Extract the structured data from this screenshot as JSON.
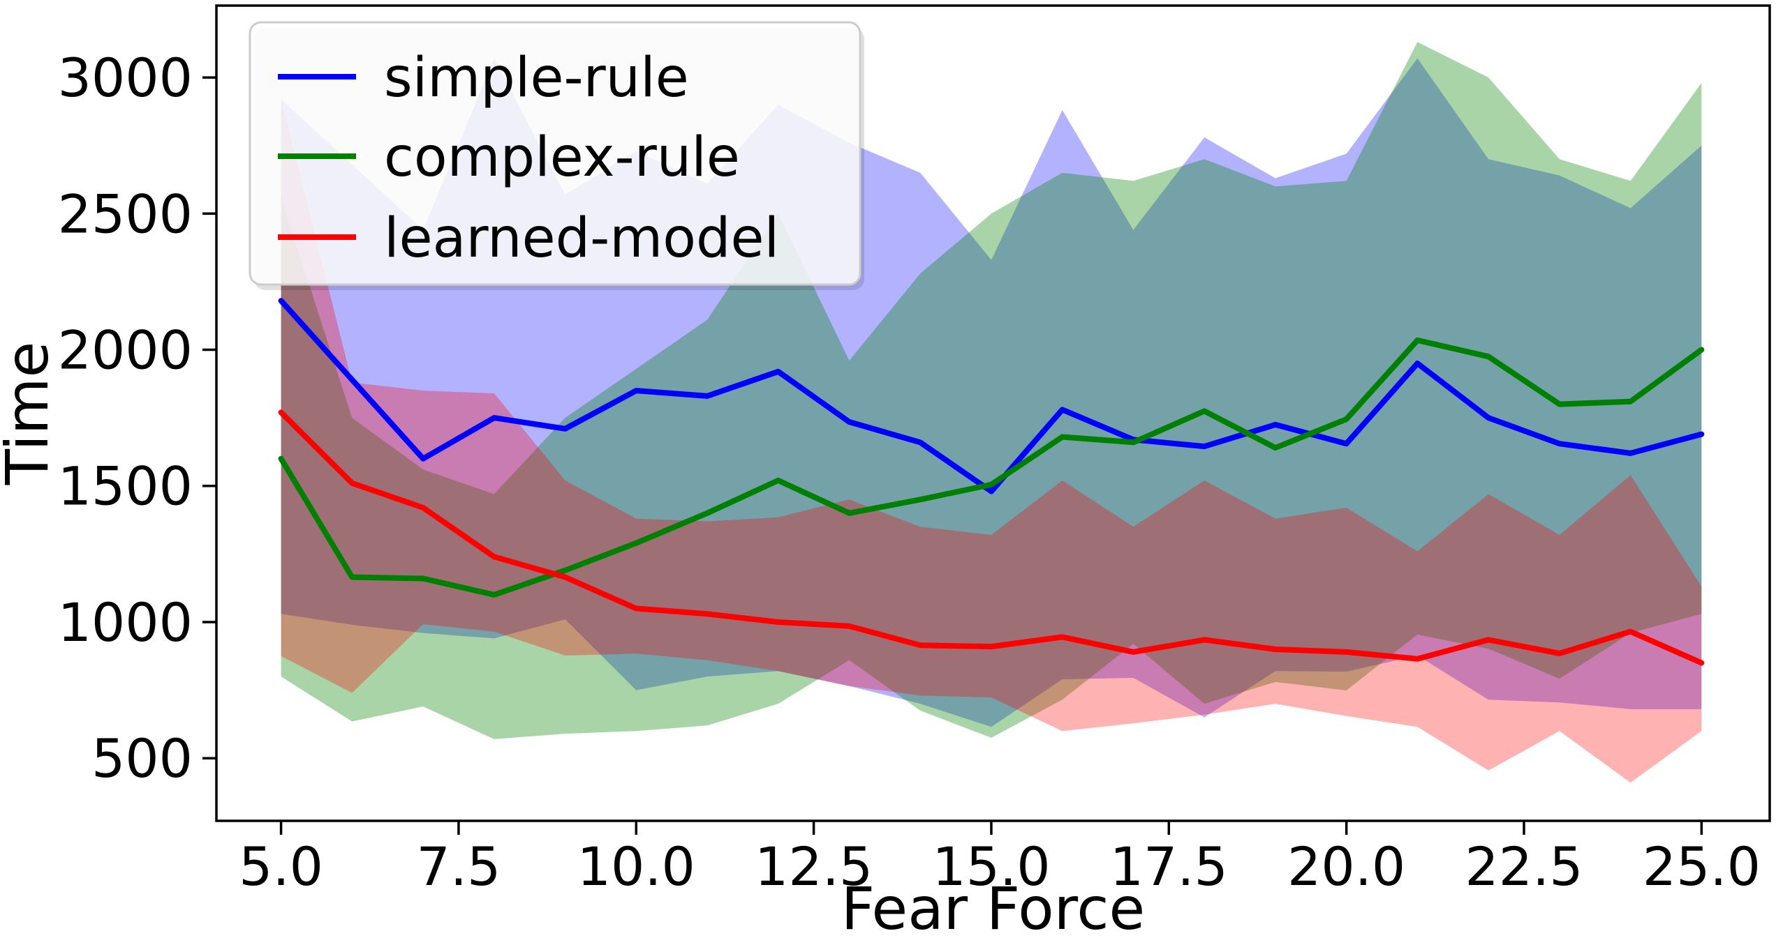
{
  "figure": {
    "background": "#ffffff",
    "xlabel": "Fear Force",
    "ylabel": "Time"
  },
  "chart_data": {
    "type": "line",
    "title": "",
    "xlabel": "Fear Force",
    "ylabel": "Time",
    "grid": false,
    "legend_position": "upper left",
    "x": [
      5,
      6,
      7,
      8,
      9,
      10,
      11,
      12,
      13,
      14,
      15,
      16,
      17,
      18,
      19,
      20,
      21,
      22,
      23,
      24,
      25
    ],
    "xlim": [
      4.09,
      25.96
    ],
    "ylim": [
      270,
      3264
    ],
    "xticks": [
      5.0,
      7.5,
      10.0,
      12.5,
      15.0,
      17.5,
      20.0,
      22.5,
      25.0
    ],
    "xtick_labels": [
      "5.0",
      "7.5",
      "10.0",
      "12.5",
      "15.0",
      "17.5",
      "20.0",
      "22.5",
      "25.0"
    ],
    "yticks": [
      500,
      1000,
      1500,
      2000,
      2500,
      3000
    ],
    "ytick_labels": [
      "500",
      "1000",
      "1500",
      "2000",
      "2500",
      "3000"
    ],
    "series": [
      {
        "name": "simple-rule",
        "color": "#0000ff",
        "band_alpha": 0.3,
        "values": [
          2180,
          1890,
          1600,
          1750,
          1710,
          1850,
          1830,
          1920,
          1735,
          1660,
          1480,
          1780,
          1670,
          1645,
          1725,
          1655,
          1950,
          1750,
          1655,
          1620,
          1690
        ],
        "band_upper": [
          2920,
          2680,
          2440,
          3070,
          2570,
          2730,
          2610,
          2900,
          2760,
          2650,
          2330,
          2880,
          2440,
          2780,
          2630,
          2720,
          3070,
          2700,
          2640,
          2520,
          2750
        ],
        "band_lower": [
          1030,
          990,
          960,
          940,
          1010,
          750,
          800,
          820,
          765,
          700,
          615,
          790,
          795,
          650,
          820,
          818,
          877,
          715,
          705,
          680,
          680
        ]
      },
      {
        "name": "complex-rule",
        "color": "#008000",
        "band_alpha": 0.34,
        "values": [
          1600,
          1165,
          1160,
          1100,
          1190,
          1290,
          1400,
          1520,
          1400,
          1450,
          1505,
          1680,
          1660,
          1775,
          1640,
          1745,
          2035,
          1975,
          1800,
          1810,
          2000
        ],
        "band_upper": [
          2560,
          1750,
          1560,
          1470,
          1750,
          1930,
          2110,
          2500,
          1960,
          2280,
          2500,
          2650,
          2620,
          2700,
          2600,
          2620,
          3130,
          3000,
          2700,
          2620,
          2980
        ],
        "band_lower": [
          800,
          635,
          690,
          570,
          590,
          600,
          620,
          700,
          860,
          675,
          575,
          715,
          920,
          700,
          780,
          749,
          954,
          902,
          792,
          960,
          1030
        ]
      },
      {
        "name": "learned-model",
        "color": "#ff0000",
        "band_alpha": 0.3,
        "values": [
          1770,
          1510,
          1420,
          1240,
          1165,
          1050,
          1030,
          1000,
          985,
          915,
          910,
          945,
          890,
          935,
          900,
          890,
          865,
          935,
          885,
          965,
          850
        ],
        "band_upper": [
          2920,
          1880,
          1850,
          1840,
          1520,
          1380,
          1370,
          1385,
          1450,
          1350,
          1320,
          1520,
          1350,
          1520,
          1380,
          1420,
          1260,
          1470,
          1320,
          1540,
          1130
        ],
        "band_lower": [
          875,
          740,
          992,
          965,
          877,
          884,
          860,
          820,
          765,
          730,
          723,
          600,
          628,
          660,
          700,
          655,
          615,
          455,
          600,
          410,
          600
        ]
      }
    ]
  }
}
